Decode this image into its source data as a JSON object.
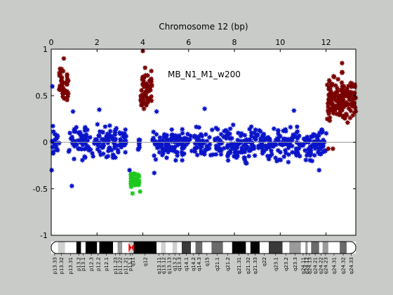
{
  "chart_data": {
    "type": "scatter",
    "title": "Chromosome 12 (bp)",
    "annotation": "MB_N1_M1_w200",
    "xlabel": "",
    "ylabel": "",
    "xlim": [
      0,
      13.3
    ],
    "ylim": [
      -1,
      1
    ],
    "x_ticks": [
      0,
      2,
      4,
      6,
      8,
      10,
      12
    ],
    "x_tick_labels": [
      "0",
      "2",
      "4",
      "6",
      "8",
      "10",
      "12"
    ],
    "x_axis_position": "top",
    "y_ticks": [
      -1,
      -0.5,
      0,
      0.5,
      1
    ],
    "y_tick_labels": [
      "-1",
      "-0.5",
      "0",
      "0.5",
      "1"
    ],
    "grid": false,
    "colors": {
      "neutral": "#0a14c8",
      "gain": "#7a0000",
      "loss": "#1ec81e",
      "background": "#c8cbc8",
      "plot_bg": "#ffffff"
    },
    "series": [
      {
        "status": "neutral",
        "color": "#0a14c8",
        "segments": [
          {
            "x0": 0.0,
            "x1": 0.35,
            "center": 0.0,
            "spread": 0.26
          },
          {
            "x0": 0.75,
            "x1": 3.3,
            "center": 0.0,
            "spread": 0.24
          },
          {
            "x0": 3.8,
            "x1": 3.9,
            "center": 0.0,
            "spread": 0.22
          },
          {
            "x0": 4.4,
            "x1": 12.05,
            "center": -0.02,
            "spread": 0.24
          }
        ],
        "points": [
          [
            0.05,
            0.6
          ],
          [
            0.02,
            -0.3
          ],
          [
            0.9,
            -0.47
          ],
          [
            0.95,
            0.33
          ],
          [
            2.1,
            0.35
          ],
          [
            4.6,
            0.33
          ],
          [
            6.7,
            0.36
          ],
          [
            10.6,
            0.34
          ],
          [
            4.5,
            -0.33
          ],
          [
            11.7,
            -0.3
          ],
          [
            3.42,
            -0.3
          ],
          [
            3.95,
            0.4
          ]
        ]
      },
      {
        "status": "gain",
        "color": "#7a0000",
        "segments": [
          {
            "x0": 0.35,
            "x1": 0.75,
            "center": 0.58,
            "spread": 0.28
          },
          {
            "x0": 3.9,
            "x1": 4.4,
            "center": 0.55,
            "spread": 0.32
          },
          {
            "x0": 12.05,
            "x1": 13.3,
            "center": 0.45,
            "spread": 0.35
          }
        ],
        "points": [
          [
            0.55,
            0.9
          ],
          [
            4.0,
            0.98
          ],
          [
            4.1,
            0.8
          ],
          [
            12.7,
            0.85
          ],
          [
            12.1,
            -0.07
          ],
          [
            12.3,
            -0.07
          ]
        ]
      },
      {
        "status": "loss",
        "color": "#1ec81e",
        "segments": [
          {
            "x0": 3.45,
            "x1": 3.85,
            "center": -0.4,
            "spread": 0.12
          }
        ],
        "points": [
          [
            3.55,
            -0.55
          ],
          [
            3.88,
            -0.53
          ],
          [
            3.5,
            -0.35
          ]
        ]
      }
    ]
  },
  "ideogram": {
    "centromere_x": 3.5,
    "bands": [
      {
        "label": "p13.33",
        "x0": 0.0,
        "x1": 0.3,
        "shade": "#ffffff"
      },
      {
        "label": "p13.32",
        "x0": 0.3,
        "x1": 0.6,
        "shade": "#d0d0d0"
      },
      {
        "label": "p13.31",
        "x0": 0.6,
        "x1": 1.1,
        "shade": "#ffffff"
      },
      {
        "label": "p13.2",
        "x0": 1.1,
        "x1": 1.3,
        "shade": "#000000"
      },
      {
        "label": "p13.1",
        "x0": 1.3,
        "x1": 1.5,
        "shade": "#ffffff"
      },
      {
        "label": "p12.3",
        "x0": 1.5,
        "x1": 2.0,
        "shade": "#000000"
      },
      {
        "label": "p12.2",
        "x0": 2.0,
        "x1": 2.1,
        "shade": "#ffffff"
      },
      {
        "label": "p12.1",
        "x0": 2.1,
        "x1": 2.7,
        "shade": "#000000"
      },
      {
        "label": "p11.23",
        "x0": 2.7,
        "x1": 2.9,
        "shade": "#ffffff"
      },
      {
        "label": "p11.22",
        "x0": 2.9,
        "x1": 3.1,
        "shade": "#9a9a9a"
      },
      {
        "label": "p11.21",
        "x0": 3.1,
        "x1": 3.4,
        "shade": "#ffffff"
      },
      {
        "label": "p11.1",
        "x0": 3.4,
        "x1": 3.5,
        "shade": "#d0d0d0"
      },
      {
        "label": "q11",
        "x0": 3.5,
        "x1": 3.6,
        "shade": "#d0d0d0"
      },
      {
        "label": "q12",
        "x0": 3.6,
        "x1": 4.6,
        "shade": "#000000"
      },
      {
        "label": "q13.11",
        "x0": 4.6,
        "x1": 4.8,
        "shade": "#ffffff"
      },
      {
        "label": "q13.12",
        "x0": 4.8,
        "x1": 5.0,
        "shade": "#d0d0d0"
      },
      {
        "label": "q13.13",
        "x0": 5.0,
        "x1": 5.3,
        "shade": "#ffffff"
      },
      {
        "label": "q13.2",
        "x0": 5.3,
        "x1": 5.5,
        "shade": "#d0d0d0"
      },
      {
        "label": "q13.3",
        "x0": 5.5,
        "x1": 5.7,
        "shade": "#ffffff"
      },
      {
        "label": "q14.1",
        "x0": 5.7,
        "x1": 6.1,
        "shade": "#3a3a3a"
      },
      {
        "label": "q14.2",
        "x0": 6.1,
        "x1": 6.3,
        "shade": "#ffffff"
      },
      {
        "label": "q14.3",
        "x0": 6.3,
        "x1": 6.6,
        "shade": "#6a6a6a"
      },
      {
        "label": "q15",
        "x0": 6.6,
        "x1": 7.0,
        "shade": "#ffffff"
      },
      {
        "label": "q21.1",
        "x0": 7.0,
        "x1": 7.5,
        "shade": "#6a6a6a"
      },
      {
        "label": "q21.2",
        "x0": 7.5,
        "x1": 7.9,
        "shade": "#ffffff"
      },
      {
        "label": "q21.31",
        "x0": 7.9,
        "x1": 8.5,
        "shade": "#000000"
      },
      {
        "label": "q21.32",
        "x0": 8.5,
        "x1": 8.7,
        "shade": "#ffffff"
      },
      {
        "label": "q21.33",
        "x0": 8.7,
        "x1": 9.1,
        "shade": "#000000"
      },
      {
        "label": "q22",
        "x0": 9.1,
        "x1": 9.5,
        "shade": "#ffffff"
      },
      {
        "label": "q23.1",
        "x0": 9.5,
        "x1": 10.1,
        "shade": "#3a3a3a"
      },
      {
        "label": "q23.2",
        "x0": 10.1,
        "x1": 10.4,
        "shade": "#ffffff"
      },
      {
        "label": "q23.3",
        "x0": 10.4,
        "x1": 10.9,
        "shade": "#9a9a9a"
      },
      {
        "label": "q24.11",
        "x0": 10.9,
        "x1": 11.1,
        "shade": "#ffffff"
      },
      {
        "label": "q24.12",
        "x0": 11.1,
        "x1": 11.2,
        "shade": "#9a9a9a"
      },
      {
        "label": "q24.13",
        "x0": 11.2,
        "x1": 11.35,
        "shade": "#ffffff"
      },
      {
        "label": "q24.21",
        "x0": 11.35,
        "x1": 11.7,
        "shade": "#6a6a6a"
      },
      {
        "label": "q24.22",
        "x0": 11.7,
        "x1": 11.85,
        "shade": "#ffffff"
      },
      {
        "label": "q24.23",
        "x0": 11.85,
        "x1": 12.1,
        "shade": "#9a9a9a"
      },
      {
        "label": "q24.31",
        "x0": 12.1,
        "x1": 12.6,
        "shade": "#ffffff"
      },
      {
        "label": "q24.32",
        "x0": 12.6,
        "x1": 12.9,
        "shade": "#6a6a6a"
      },
      {
        "label": "q24.33",
        "x0": 12.9,
        "x1": 13.3,
        "shade": "#ffffff"
      }
    ]
  }
}
